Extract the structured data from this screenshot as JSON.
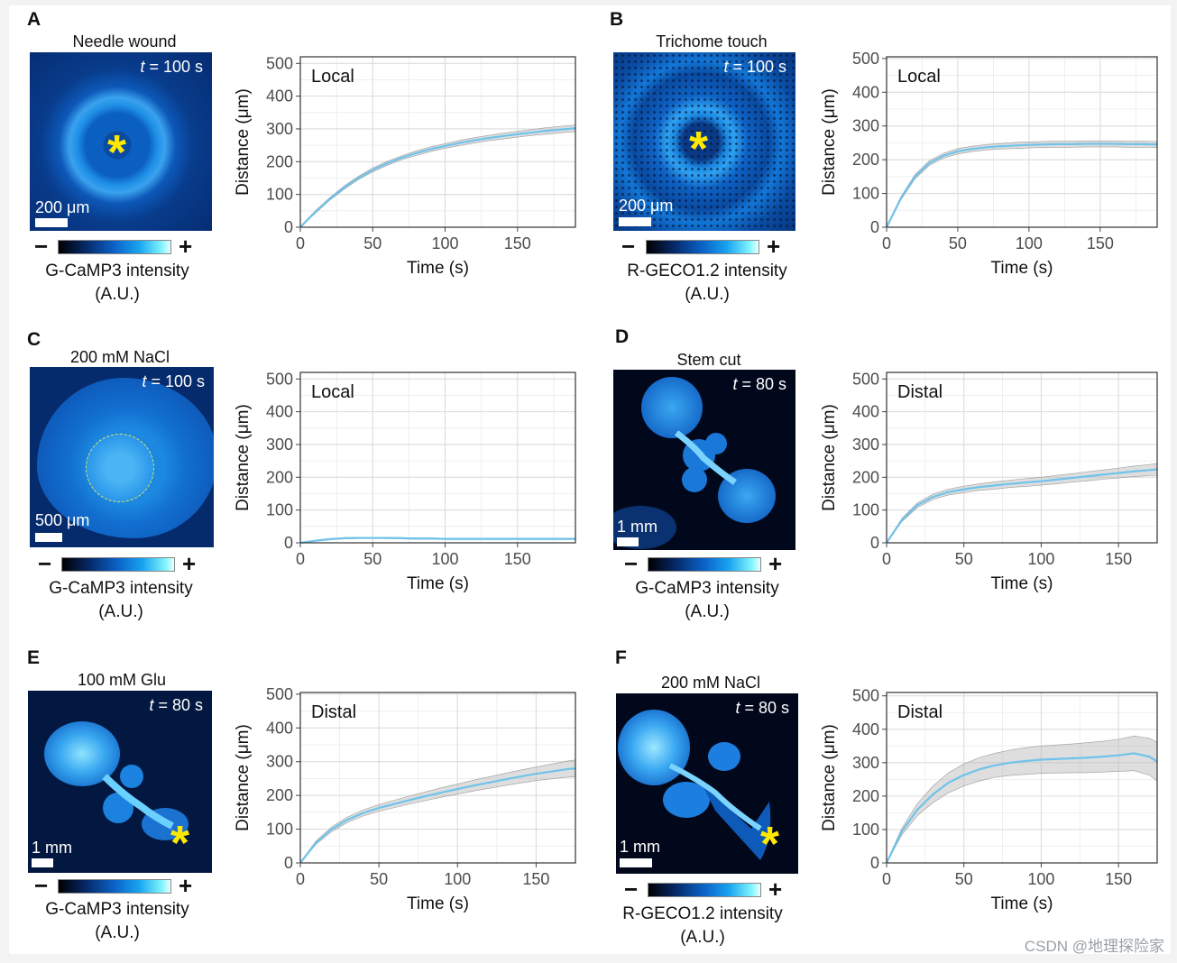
{
  "colors": {
    "line": "#6fc3ea",
    "ribbon": "#b5b5b5",
    "grid": "#ebebeb",
    "colorbar_top": "#7ff4ff"
  },
  "watermark": "CSDN @地理探险家",
  "colorbar_signs": {
    "minus": "−",
    "plus": "+"
  },
  "panels": [
    {
      "letter": "A",
      "image_title": "Needle wound",
      "time_label": "t = 100 s",
      "time_var": "t",
      "time_rest": " = 100 s",
      "scale_label": "200 μm",
      "colorbar_label": "G-CaMP3 intensity",
      "colorbar_unit": "(A.U.)",
      "image_kind": "ring",
      "stimulus_marker": "*"
    },
    {
      "letter": "B",
      "image_title": "Trichome touch",
      "time_var": "t",
      "time_rest": " = 100 s",
      "scale_label": "200 μm",
      "colorbar_label": "R-GECO1.2 intensity",
      "colorbar_unit": "(A.U.)",
      "image_kind": "speckle",
      "stimulus_marker": "*"
    },
    {
      "letter": "C",
      "image_title": "200 mM NaCl",
      "time_var": "t",
      "time_rest": " = 100 s",
      "scale_label": "500 μm",
      "colorbar_label": "G-CaMP3 intensity",
      "colorbar_unit": "(A.U.)",
      "image_kind": "disc"
    },
    {
      "letter": "D",
      "image_title": "Stem cut",
      "time_var": "t",
      "time_rest": " = 80 s",
      "scale_label": "1 mm",
      "colorbar_label": "G-CaMP3 intensity",
      "colorbar_unit": "(A.U.)",
      "image_kind": "seedling"
    },
    {
      "letter": "E",
      "image_title": "100 mM Glu",
      "time_var": "t",
      "time_rest": " = 80 s",
      "scale_label": "1 mm",
      "colorbar_label": "G-CaMP3 intensity",
      "colorbar_unit": "(A.U.)",
      "image_kind": "seedling2",
      "stimulus_marker": "*"
    },
    {
      "letter": "F",
      "image_title": "200 mM NaCl",
      "time_var": "t",
      "time_rest": " = 80 s",
      "scale_label": "1 mm",
      "colorbar_label": "R-GECO1.2 intensity",
      "colorbar_unit": "(A.U.)",
      "image_kind": "seedling3",
      "stimulus_marker": "*"
    }
  ],
  "chart_data": [
    {
      "panel": "A",
      "type": "line",
      "annotation": "Local",
      "xlabel": "Time (s)",
      "ylabel": "Distance (μm)",
      "xlim": [
        0,
        190
      ],
      "ylim": [
        0,
        520
      ],
      "xticks": [
        0,
        50,
        100,
        150
      ],
      "yticks": [
        0,
        100,
        200,
        300,
        400,
        500
      ],
      "x": [
        0,
        10,
        20,
        30,
        40,
        50,
        60,
        70,
        80,
        90,
        100,
        110,
        120,
        130,
        140,
        150,
        160,
        170,
        180,
        190
      ],
      "y": [
        0,
        45,
        85,
        120,
        150,
        175,
        195,
        212,
        226,
        238,
        248,
        257,
        265,
        272,
        278,
        284,
        289,
        294,
        298,
        302
      ],
      "band": [
        3,
        4,
        4,
        5,
        5,
        6,
        6,
        6,
        7,
        7,
        7,
        8,
        8,
        8,
        9,
        9,
        9,
        10,
        10,
        10
      ]
    },
    {
      "panel": "B",
      "type": "line",
      "annotation": "Local",
      "xlabel": "Time (s)",
      "ylabel": "Distance (μm)",
      "xlim": [
        0,
        190
      ],
      "ylim": [
        0,
        505
      ],
      "xticks": [
        0,
        50,
        100,
        150
      ],
      "yticks": [
        0,
        100,
        200,
        300,
        400,
        500
      ],
      "x": [
        0,
        10,
        20,
        30,
        40,
        50,
        60,
        70,
        80,
        90,
        100,
        110,
        120,
        130,
        140,
        150,
        160,
        170,
        180,
        190
      ],
      "y": [
        0,
        85,
        150,
        190,
        212,
        225,
        232,
        237,
        240,
        242,
        244,
        245,
        246,
        246,
        247,
        247,
        247,
        246,
        246,
        245
      ],
      "band": [
        3,
        5,
        6,
        7,
        7,
        8,
        8,
        8,
        8,
        9,
        9,
        9,
        9,
        9,
        9,
        9,
        9,
        9,
        9,
        9
      ]
    },
    {
      "panel": "C",
      "type": "line",
      "annotation": "Local",
      "xlabel": "Time (s)",
      "ylabel": "Distance (μm)",
      "xlim": [
        0,
        190
      ],
      "ylim": [
        0,
        520
      ],
      "xticks": [
        0,
        50,
        100,
        150
      ],
      "yticks": [
        0,
        100,
        200,
        300,
        400,
        500
      ],
      "x": [
        0,
        10,
        20,
        30,
        40,
        50,
        60,
        70,
        80,
        90,
        100,
        110,
        120,
        130,
        140,
        150,
        160,
        170,
        180,
        190
      ],
      "y": [
        0,
        6,
        11,
        14,
        15,
        15,
        15,
        14,
        13,
        13,
        12,
        12,
        12,
        12,
        12,
        12,
        12,
        12,
        12,
        12
      ],
      "band": [
        1,
        2,
        2,
        2,
        2,
        2,
        2,
        2,
        2,
        2,
        2,
        2,
        2,
        2,
        2,
        2,
        2,
        2,
        2,
        2
      ]
    },
    {
      "panel": "D",
      "type": "line",
      "annotation": "Distal",
      "xlabel": "Time (s)",
      "ylabel": "Distance (μm)",
      "xlim": [
        0,
        175
      ],
      "ylim": [
        0,
        520
      ],
      "xticks": [
        0,
        50,
        100,
        150
      ],
      "yticks": [
        0,
        100,
        200,
        300,
        400,
        500
      ],
      "x": [
        0,
        10,
        20,
        30,
        40,
        50,
        60,
        70,
        80,
        90,
        100,
        110,
        120,
        130,
        140,
        150,
        160,
        170,
        175
      ],
      "y": [
        0,
        70,
        115,
        140,
        155,
        163,
        170,
        175,
        180,
        184,
        188,
        193,
        198,
        203,
        208,
        213,
        218,
        222,
        224
      ],
      "band": [
        3,
        5,
        7,
        8,
        9,
        10,
        10,
        11,
        11,
        12,
        12,
        13,
        13,
        14,
        14,
        15,
        16,
        17,
        18
      ]
    },
    {
      "panel": "E",
      "type": "line",
      "annotation": "Distal",
      "xlabel": "Time (s)",
      "ylabel": "Distance (μm)",
      "xlim": [
        0,
        175
      ],
      "ylim": [
        0,
        505
      ],
      "xticks": [
        0,
        50,
        100,
        150
      ],
      "yticks": [
        0,
        100,
        200,
        300,
        400,
        500
      ],
      "x": [
        0,
        10,
        20,
        30,
        40,
        50,
        60,
        70,
        80,
        90,
        100,
        110,
        120,
        130,
        140,
        150,
        160,
        170,
        175
      ],
      "y": [
        0,
        60,
        100,
        128,
        148,
        163,
        175,
        187,
        198,
        209,
        219,
        229,
        238,
        247,
        256,
        264,
        271,
        278,
        280
      ],
      "band": [
        3,
        5,
        7,
        8,
        9,
        10,
        11,
        12,
        13,
        14,
        15,
        16,
        17,
        18,
        19,
        20,
        22,
        24,
        25
      ]
    },
    {
      "panel": "F",
      "type": "line",
      "annotation": "Distal",
      "xlabel": "Time (s)",
      "ylabel": "Distance (μm)",
      "xlim": [
        0,
        175
      ],
      "ylim": [
        0,
        510
      ],
      "xticks": [
        0,
        50,
        100,
        150
      ],
      "yticks": [
        0,
        100,
        200,
        300,
        400,
        500
      ],
      "x": [
        0,
        10,
        20,
        30,
        40,
        50,
        60,
        70,
        80,
        90,
        100,
        110,
        120,
        130,
        140,
        150,
        160,
        170,
        175
      ],
      "y": [
        0,
        95,
        160,
        205,
        240,
        263,
        280,
        292,
        300,
        305,
        309,
        311,
        313,
        315,
        318,
        322,
        328,
        318,
        303
      ],
      "band": [
        3,
        10,
        18,
        25,
        30,
        33,
        35,
        36,
        38,
        40,
        41,
        42,
        43,
        45,
        46,
        48,
        52,
        55,
        58
      ]
    }
  ]
}
